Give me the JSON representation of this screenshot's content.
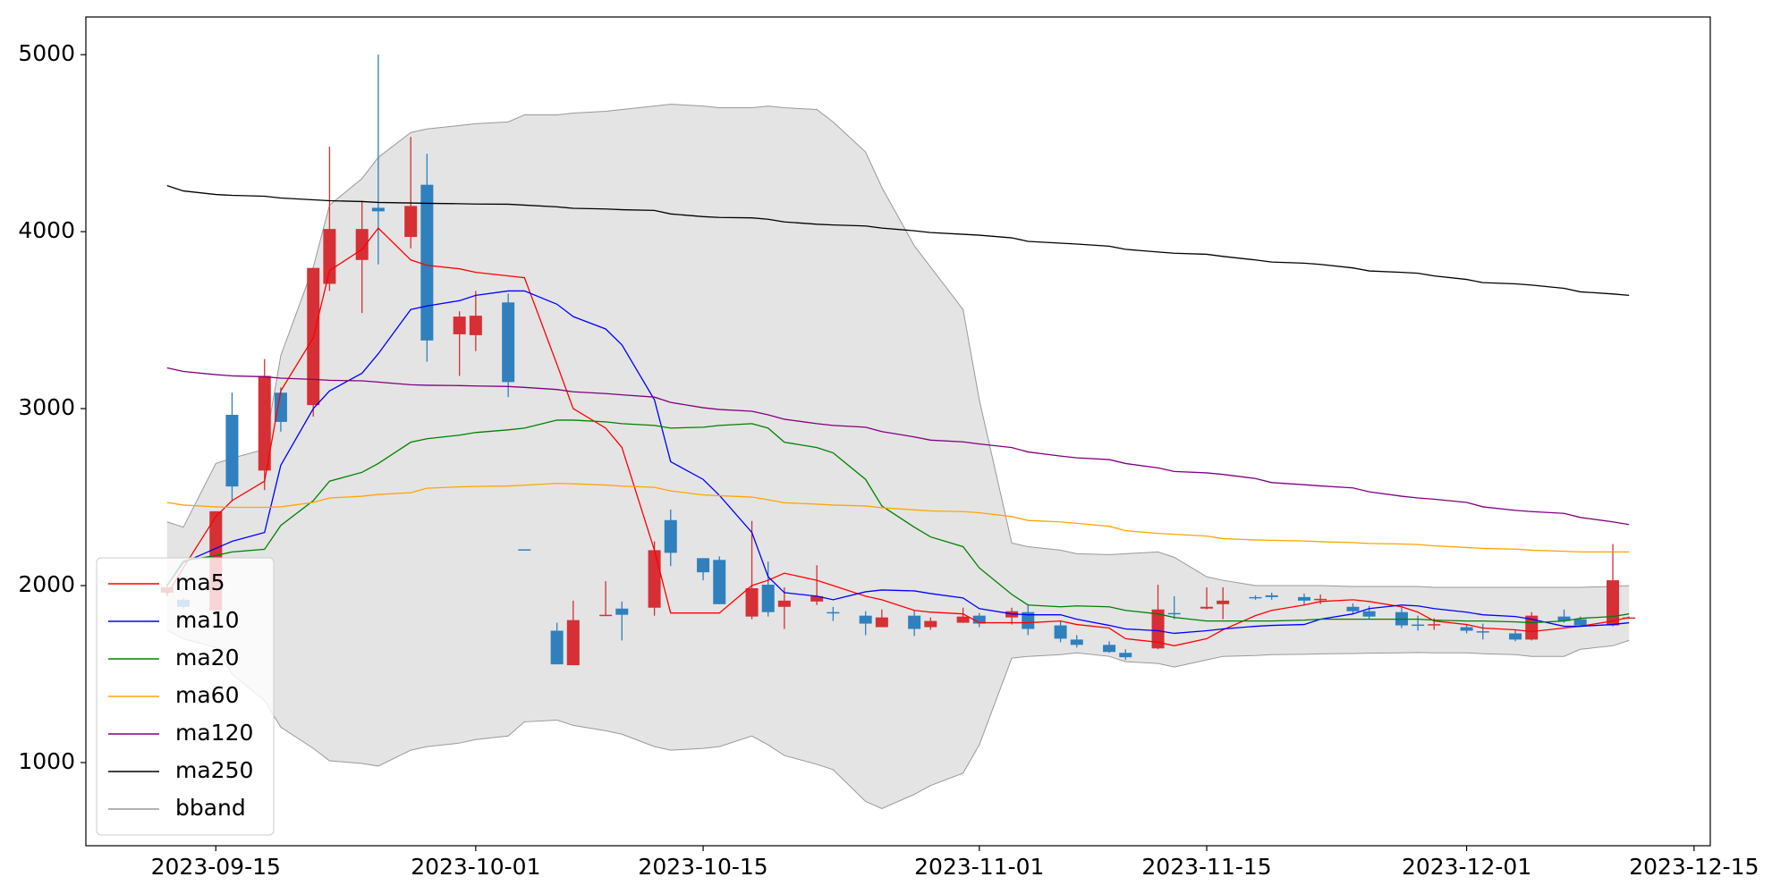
{
  "chart_data": {
    "type": "candlestick",
    "x": [
      "2023-09-12",
      "2023-09-13",
      "2023-09-15",
      "2023-09-16",
      "2023-09-18",
      "2023-09-19",
      "2023-09-21",
      "2023-09-22",
      "2023-09-24",
      "2023-09-25",
      "2023-09-27",
      "2023-09-28",
      "2023-09-30",
      "2023-10-01",
      "2023-10-03",
      "2023-10-04",
      "2023-10-06",
      "2023-10-07",
      "2023-10-09",
      "2023-10-10",
      "2023-10-12",
      "2023-10-13",
      "2023-10-15",
      "2023-10-16",
      "2023-10-18",
      "2023-10-19",
      "2023-10-20",
      "2023-10-22",
      "2023-10-23",
      "2023-10-25",
      "2023-10-26",
      "2023-10-28",
      "2023-10-29",
      "2023-10-31",
      "2023-11-01",
      "2023-11-03",
      "2023-11-04",
      "2023-11-06",
      "2023-11-07",
      "2023-11-09",
      "2023-11-10",
      "2023-11-12",
      "2023-11-13",
      "2023-11-15",
      "2023-11-16",
      "2023-11-18",
      "2023-11-19",
      "2023-11-21",
      "2023-11-22",
      "2023-11-24",
      "2023-11-25",
      "2023-11-27",
      "2023-11-28",
      "2023-11-29",
      "2023-12-01",
      "2023-12-02",
      "2023-12-04",
      "2023-12-05",
      "2023-12-07",
      "2023-12-08",
      "2023-12-10",
      "2023-12-11"
    ],
    "open": [
      1960,
      1920,
      1860,
      2965,
      2650,
      3090,
      3020,
      3705,
      3840,
      4135,
      3970,
      4265,
      3420,
      3415,
      3600,
      2205,
      1745,
      1550,
      1830,
      1870,
      1875,
      2370,
      2155,
      2145,
      1825,
      2005,
      1880,
      1910,
      1850,
      1830,
      1765,
      1830,
      1765,
      1790,
      1830,
      1820,
      1850,
      1775,
      1695,
      1665,
      1620,
      1645,
      1845,
      1870,
      1895,
      1935,
      1945,
      1935,
      1920,
      1880,
      1855,
      1850,
      1780,
      1778,
      1765,
      1742,
      1730,
      1695,
      1825,
      1810,
      1775,
      1818
    ],
    "high": [
      2010,
      1930,
      2420,
      3090,
      3280,
      3120,
      3795,
      4480,
      4175,
      5000,
      4535,
      4440,
      3550,
      3665,
      3650,
      2205,
      1790,
      1915,
      2025,
      1910,
      2250,
      2430,
      2155,
      2165,
      2365,
      2135,
      1990,
      2115,
      1880,
      1855,
      1865,
      1860,
      1820,
      1875,
      1845,
      1875,
      1895,
      1800,
      1720,
      1685,
      1640,
      2005,
      1940,
      1990,
      1990,
      1945,
      1960,
      1955,
      1950,
      1900,
      1885,
      1880,
      1830,
      1815,
      1780,
      1785,
      1750,
      1850,
      1865,
      1825,
      2235,
      1825
    ],
    "low": [
      1940,
      1870,
      1830,
      2475,
      2540,
      2870,
      2955,
      3665,
      3540,
      3815,
      3905,
      3265,
      3185,
      3325,
      3065,
      2200,
      1555,
      1550,
      1830,
      1690,
      1830,
      2110,
      2030,
      1895,
      1810,
      1825,
      1755,
      1890,
      1800,
      1720,
      1765,
      1715,
      1750,
      1790,
      1765,
      1780,
      1720,
      1680,
      1650,
      1620,
      1580,
      1640,
      1810,
      1865,
      1810,
      1920,
      1920,
      1890,
      1895,
      1840,
      1810,
      1760,
      1745,
      1750,
      1730,
      1695,
      1685,
      1690,
      1790,
      1770,
      1770,
      1815
    ],
    "close": [
      1990,
      1880,
      2420,
      2560,
      3185,
      2925,
      3795,
      4015,
      4015,
      4115,
      4145,
      3385,
      3520,
      3525,
      3150,
      2200,
      1555,
      1805,
      1835,
      1835,
      2200,
      2185,
      2075,
      1895,
      1985,
      1850,
      1915,
      1940,
      1845,
      1785,
      1820,
      1755,
      1800,
      1825,
      1785,
      1855,
      1755,
      1700,
      1665,
      1625,
      1595,
      1865,
      1840,
      1880,
      1915,
      1930,
      1935,
      1915,
      1925,
      1855,
      1825,
      1775,
      1775,
      1782,
      1745,
      1738,
      1695,
      1830,
      1800,
      1775,
      2030,
      1820
    ],
    "up_color": "#d62f35",
    "down_color": "#2f80bd",
    "series": [
      {
        "name": "ma5",
        "color": "#ff0000",
        "values": [
          1950,
          2100,
          2390,
          2480,
          2590,
          3100,
          3400,
          3780,
          3900,
          4020,
          3840,
          3810,
          3790,
          3770,
          3750,
          3740,
          3250,
          3000,
          2890,
          2780,
          2200,
          1845,
          1845,
          1845,
          2000,
          2030,
          2070,
          2030,
          2000,
          1940,
          1920,
          1860,
          1850,
          1840,
          1790,
          1790,
          1790,
          1800,
          1780,
          1760,
          1700,
          1680,
          1660,
          1700,
          1750,
          1830,
          1860,
          1890,
          1910,
          1920,
          1910,
          1880,
          1850,
          1800,
          1780,
          1760,
          1750,
          1740,
          1760,
          1770,
          1800,
          1820
        ]
      },
      {
        "name": "ma10",
        "color": "#0000ff",
        "values": [
          2000,
          2130,
          2210,
          2250,
          2300,
          2680,
          3000,
          3100,
          3200,
          3310,
          3560,
          3580,
          3610,
          3640,
          3665,
          3665,
          3590,
          3520,
          3450,
          3360,
          3050,
          2700,
          2600,
          2510,
          2300,
          2050,
          1960,
          1940,
          1920,
          1965,
          1975,
          1970,
          1955,
          1930,
          1870,
          1840,
          1835,
          1835,
          1810,
          1775,
          1755,
          1745,
          1730,
          1745,
          1755,
          1770,
          1775,
          1780,
          1810,
          1840,
          1870,
          1890,
          1885,
          1870,
          1850,
          1835,
          1825,
          1810,
          1770,
          1770,
          1780,
          1790
        ]
      },
      {
        "name": "ma20",
        "color": "#008000",
        "values": [
          2000,
          2140,
          2170,
          2190,
          2205,
          2340,
          2480,
          2590,
          2640,
          2690,
          2810,
          2830,
          2850,
          2865,
          2880,
          2890,
          2935,
          2935,
          2925,
          2915,
          2905,
          2890,
          2895,
          2905,
          2915,
          2890,
          2810,
          2780,
          2750,
          2600,
          2450,
          2330,
          2275,
          2220,
          2100,
          1950,
          1890,
          1880,
          1885,
          1880,
          1860,
          1840,
          1820,
          1800,
          1800,
          1800,
          1800,
          1805,
          1810,
          1810,
          1810,
          1810,
          1810,
          1805,
          1800,
          1800,
          1795,
          1790,
          1800,
          1815,
          1825,
          1840
        ]
      },
      {
        "name": "ma60",
        "color": "#ffa500",
        "values": [
          2470,
          2455,
          2445,
          2442,
          2442,
          2445,
          2470,
          2495,
          2505,
          2515,
          2525,
          2550,
          2558,
          2560,
          2563,
          2567,
          2578,
          2575,
          2568,
          2562,
          2555,
          2535,
          2512,
          2508,
          2500,
          2485,
          2468,
          2460,
          2455,
          2450,
          2440,
          2428,
          2422,
          2418,
          2412,
          2390,
          2368,
          2360,
          2352,
          2335,
          2310,
          2295,
          2290,
          2280,
          2265,
          2258,
          2256,
          2252,
          2248,
          2243,
          2238,
          2235,
          2232,
          2225,
          2215,
          2210,
          2206,
          2200,
          2194,
          2190,
          2190,
          2190
        ]
      },
      {
        "name": "ma120",
        "color": "#800080",
        "values": [
          3230,
          3210,
          3192,
          3185,
          3180,
          3172,
          3165,
          3160,
          3157,
          3150,
          3135,
          3132,
          3130,
          3128,
          3125,
          3120,
          3108,
          3095,
          3085,
          3078,
          3065,
          3035,
          3005,
          2995,
          2985,
          2965,
          2940,
          2915,
          2905,
          2895,
          2870,
          2840,
          2822,
          2812,
          2800,
          2780,
          2755,
          2732,
          2722,
          2712,
          2690,
          2665,
          2645,
          2637,
          2628,
          2605,
          2582,
          2570,
          2563,
          2552,
          2530,
          2505,
          2495,
          2488,
          2470,
          2445,
          2425,
          2418,
          2408,
          2385,
          2360,
          2345
        ]
      },
      {
        "name": "ma250",
        "color": "#000000",
        "values": [
          4260,
          4230,
          4210,
          4205,
          4200,
          4190,
          4180,
          4175,
          4170,
          4165,
          4162,
          4160,
          4158,
          4156,
          4155,
          4150,
          4140,
          4132,
          4128,
          4124,
          4120,
          4100,
          4085,
          4080,
          4078,
          4070,
          4055,
          4042,
          4038,
          4032,
          4020,
          4005,
          3995,
          3985,
          3980,
          3965,
          3945,
          3935,
          3930,
          3918,
          3900,
          3885,
          3878,
          3872,
          3860,
          3840,
          3828,
          3822,
          3815,
          3795,
          3778,
          3770,
          3765,
          3750,
          3730,
          3712,
          3705,
          3698,
          3680,
          3660,
          3648,
          3640
        ]
      }
    ],
    "band": {
      "name": "bband",
      "color": "#999999",
      "fill": "#e4e4e4",
      "upper": [
        2360,
        2330,
        2690,
        2720,
        2770,
        3300,
        3800,
        4150,
        4300,
        4420,
        4560,
        4580,
        4600,
        4610,
        4620,
        4660,
        4660,
        4670,
        4680,
        4690,
        4710,
        4720,
        4710,
        4700,
        4700,
        4710,
        4700,
        4690,
        4620,
        4450,
        4250,
        3920,
        3800,
        3560,
        3050,
        2240,
        2220,
        2200,
        2180,
        2175,
        2180,
        2190,
        2160,
        2050,
        2030,
        2000,
        2000,
        2000,
        2000,
        1995,
        1995,
        1995,
        1995,
        1990,
        1990,
        1990,
        1990,
        1990,
        1990,
        1990,
        1995,
        2000
      ],
      "lower": [
        1750,
        1700,
        1650,
        1500,
        1350,
        1200,
        1080,
        1010,
        995,
        980,
        1070,
        1090,
        1110,
        1130,
        1150,
        1230,
        1240,
        1210,
        1180,
        1160,
        1090,
        1070,
        1080,
        1090,
        1150,
        1100,
        1040,
        990,
        960,
        780,
        740,
        820,
        870,
        940,
        1100,
        1590,
        1600,
        1610,
        1620,
        1600,
        1570,
        1560,
        1540,
        1580,
        1600,
        1605,
        1610,
        1612,
        1614,
        1616,
        1618,
        1620,
        1622,
        1620,
        1620,
        1615,
        1610,
        1600,
        1600,
        1640,
        1660,
        1690
      ]
    },
    "xlim": [
      "2023-09-07",
      "2023-12-16"
    ],
    "xticks": [
      "2023-09-15",
      "2023-10-01",
      "2023-10-15",
      "2023-11-01",
      "2023-11-15",
      "2023-12-01",
      "2023-12-15"
    ],
    "ylim": [
      530,
      5213
    ],
    "yticks": [
      1000,
      2000,
      3000,
      4000,
      5000
    ],
    "legend": "lower left"
  }
}
